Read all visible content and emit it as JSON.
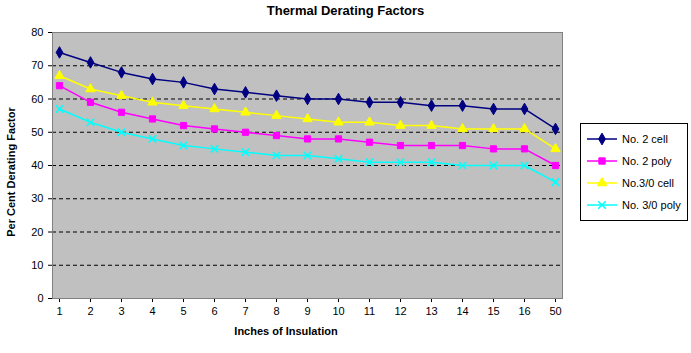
{
  "chart_data": {
    "type": "line",
    "title": "Thermal Derating Factors",
    "x_label": "Inches of Insulation",
    "y_label": "Per Cent Derating Factor",
    "categories": [
      "1",
      "2",
      "3",
      "4",
      "5",
      "6",
      "7",
      "8",
      "9",
      "10",
      "11",
      "12",
      "13",
      "14",
      "15",
      "16",
      "50"
    ],
    "series": [
      {
        "name": "No. 2 cell",
        "color": "#000080",
        "marker": "diamond",
        "values": [
          74,
          71,
          68,
          66,
          65,
          63,
          62,
          61,
          60,
          60,
          59,
          59,
          58,
          58,
          57,
          57,
          51
        ]
      },
      {
        "name": "No. 2 poly",
        "color": "#ff00ff",
        "marker": "square",
        "values": [
          64,
          59,
          56,
          54,
          52,
          51,
          50,
          49,
          48,
          48,
          47,
          46,
          46,
          46,
          45,
          45,
          40
        ]
      },
      {
        "name": "No.3/0 cell",
        "color": "#ffff00",
        "marker": "triangle",
        "values": [
          67,
          63,
          61,
          59,
          58,
          57,
          56,
          55,
          54,
          53,
          53,
          52,
          52,
          51,
          51,
          51,
          45
        ]
      },
      {
        "name": "No. 3/0 poly",
        "color": "#00ffff",
        "marker": "times",
        "values": [
          57,
          53,
          50,
          48,
          46,
          45,
          44,
          43,
          43,
          42,
          41,
          41,
          41,
          40,
          40,
          40,
          35
        ]
      }
    ],
    "ylim": [
      0,
      80
    ],
    "yticks": [
      0,
      10,
      20,
      30,
      40,
      50,
      60,
      70,
      80
    ],
    "grid": true,
    "legend": "right"
  }
}
